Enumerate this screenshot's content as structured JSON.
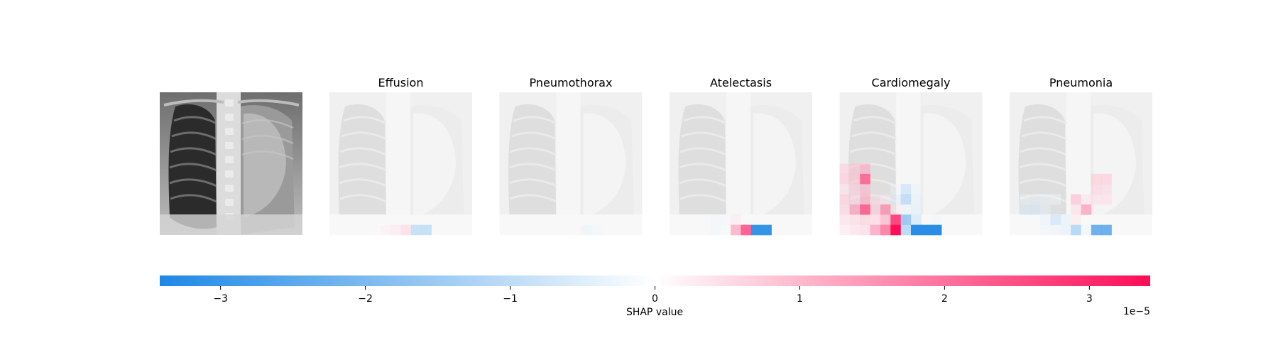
{
  "chart_data": {
    "type": "heatmap",
    "input_image": {
      "description_icon": "chest-xray-image"
    },
    "panels": [
      {
        "title": "Effusion",
        "cells": [
          {
            "row": 13,
            "col": 5,
            "value": 3e-06
          },
          {
            "row": 13,
            "col": 6,
            "value": 4.5e-06
          },
          {
            "row": 13,
            "col": 7,
            "value": 7e-06
          },
          {
            "row": 13,
            "col": 8,
            "value": -1.3e-05
          },
          {
            "row": 13,
            "col": 9,
            "value": -1.3e-05
          }
        ]
      },
      {
        "title": "Pneumothorax",
        "cells": [
          {
            "row": 13,
            "col": 7,
            "value": 2e-06
          },
          {
            "row": 13,
            "col": 8,
            "value": -4e-06
          },
          {
            "row": 13,
            "col": 9,
            "value": -3e-06
          }
        ]
      },
      {
        "title": "Atelectasis",
        "cells": [
          {
            "row": 12,
            "col": 4,
            "value": -3e-06
          },
          {
            "row": 12,
            "col": 5,
            "value": -2.5e-06
          },
          {
            "row": 12,
            "col": 6,
            "value": 4e-06
          },
          {
            "row": 13,
            "col": 4,
            "value": -3e-06
          },
          {
            "row": 13,
            "col": 5,
            "value": -2e-06
          },
          {
            "row": 13,
            "col": 6,
            "value": 1.5e-05
          },
          {
            "row": 13,
            "col": 7,
            "value": 2.6e-05
          },
          {
            "row": 13,
            "col": 8,
            "value": -3.2e-05
          },
          {
            "row": 13,
            "col": 9,
            "value": -3.2e-05
          }
        ]
      },
      {
        "title": "Cardiomegaly",
        "cells": [
          {
            "row": 7,
            "col": 0,
            "value": 8e-06
          },
          {
            "row": 7,
            "col": 1,
            "value": 1e-05
          },
          {
            "row": 7,
            "col": 2,
            "value": 1.3e-05
          },
          {
            "row": 8,
            "col": 0,
            "value": 9e-06
          },
          {
            "row": 8,
            "col": 1,
            "value": 1e-05
          },
          {
            "row": 8,
            "col": 2,
            "value": 2.4e-05
          },
          {
            "row": 9,
            "col": 0,
            "value": 6e-06
          },
          {
            "row": 9,
            "col": 1,
            "value": 8e-06
          },
          {
            "row": 9,
            "col": 2,
            "value": 1.1e-05
          },
          {
            "row": 9,
            "col": 5,
            "value": -3e-06
          },
          {
            "row": 9,
            "col": 6,
            "value": -1e-05
          },
          {
            "row": 9,
            "col": 7,
            "value": -4e-06
          },
          {
            "row": 10,
            "col": 0,
            "value": 9e-06
          },
          {
            "row": 10,
            "col": 1,
            "value": 7e-06
          },
          {
            "row": 10,
            "col": 2,
            "value": 1.3e-05
          },
          {
            "row": 10,
            "col": 3,
            "value": 6e-06
          },
          {
            "row": 10,
            "col": 4,
            "value": 3e-06
          },
          {
            "row": 10,
            "col": 5,
            "value": -6e-06
          },
          {
            "row": 10,
            "col": 6,
            "value": -1.4e-05
          },
          {
            "row": 10,
            "col": 7,
            "value": -5e-06
          },
          {
            "row": 11,
            "col": 0,
            "value": 8e-06
          },
          {
            "row": 11,
            "col": 1,
            "value": 1.5e-05
          },
          {
            "row": 11,
            "col": 2,
            "value": 2.5e-05
          },
          {
            "row": 11,
            "col": 3,
            "value": 8e-06
          },
          {
            "row": 11,
            "col": 4,
            "value": 1.8e-05
          },
          {
            "row": 11,
            "col": 5,
            "value": 4e-06
          },
          {
            "row": 11,
            "col": 6,
            "value": -4e-06
          },
          {
            "row": 11,
            "col": 7,
            "value": -6e-06
          },
          {
            "row": 12,
            "col": 0,
            "value": 6e-06
          },
          {
            "row": 12,
            "col": 1,
            "value": 7e-06
          },
          {
            "row": 12,
            "col": 2,
            "value": 9e-06
          },
          {
            "row": 12,
            "col": 3,
            "value": 8e-06
          },
          {
            "row": 12,
            "col": 4,
            "value": 1.3e-05
          },
          {
            "row": 12,
            "col": 5,
            "value": 2.9e-05
          },
          {
            "row": 12,
            "col": 6,
            "value": -2e-05
          },
          {
            "row": 12,
            "col": 7,
            "value": -9e-06
          },
          {
            "row": 12,
            "col": 9,
            "value": -3e-06
          },
          {
            "row": 12,
            "col": 10,
            "value": -2e-06
          },
          {
            "row": 13,
            "col": 0,
            "value": 4e-06
          },
          {
            "row": 13,
            "col": 1,
            "value": 6e-06
          },
          {
            "row": 13,
            "col": 2,
            "value": 7e-06
          },
          {
            "row": 13,
            "col": 3,
            "value": 1.6e-05
          },
          {
            "row": 13,
            "col": 4,
            "value": 2.2e-05
          },
          {
            "row": 13,
            "col": 5,
            "value": 3.4e-05
          },
          {
            "row": 13,
            "col": 6,
            "value": -1.5e-05
          },
          {
            "row": 13,
            "col": 7,
            "value": -3.3e-05
          },
          {
            "row": 13,
            "col": 8,
            "value": -3.3e-05
          },
          {
            "row": 13,
            "col": 9,
            "value": -3.3e-05
          }
        ]
      },
      {
        "title": "Pneumonia",
        "cells": [
          {
            "row": 8,
            "col": 8,
            "value": 9e-06
          },
          {
            "row": 8,
            "col": 9,
            "value": 9e-06
          },
          {
            "row": 9,
            "col": 8,
            "value": 8e-06
          },
          {
            "row": 9,
            "col": 9,
            "value": 7e-06
          },
          {
            "row": 10,
            "col": 1,
            "value": -3e-06
          },
          {
            "row": 10,
            "col": 2,
            "value": -4e-06
          },
          {
            "row": 10,
            "col": 3,
            "value": -3e-06
          },
          {
            "row": 10,
            "col": 4,
            "value": -2e-06
          },
          {
            "row": 10,
            "col": 6,
            "value": 1.1e-05
          },
          {
            "row": 10,
            "col": 7,
            "value": 5e-06
          },
          {
            "row": 10,
            "col": 8,
            "value": 6e-06
          },
          {
            "row": 10,
            "col": 9,
            "value": 6e-06
          },
          {
            "row": 11,
            "col": 1,
            "value": -6e-06
          },
          {
            "row": 11,
            "col": 2,
            "value": -7e-06
          },
          {
            "row": 11,
            "col": 3,
            "value": -4e-06
          },
          {
            "row": 11,
            "col": 6,
            "value": 6e-06
          },
          {
            "row": 11,
            "col": 7,
            "value": 1.6e-05
          },
          {
            "row": 12,
            "col": 3,
            "value": -4e-06
          },
          {
            "row": 12,
            "col": 4,
            "value": -1e-05
          },
          {
            "row": 12,
            "col": 5,
            "value": -5e-06
          },
          {
            "row": 12,
            "col": 6,
            "value": 4e-06
          },
          {
            "row": 13,
            "col": 2,
            "value": -2e-06
          },
          {
            "row": 13,
            "col": 3,
            "value": -3e-06
          },
          {
            "row": 13,
            "col": 4,
            "value": -4e-06
          },
          {
            "row": 13,
            "col": 5,
            "value": -5e-06
          },
          {
            "row": 13,
            "col": 6,
            "value": -1.6e-05
          },
          {
            "row": 13,
            "col": 7,
            "value": -3e-06
          },
          {
            "row": 13,
            "col": 8,
            "value": -2.6e-05
          },
          {
            "row": 13,
            "col": 9,
            "value": -2.6e-05
          }
        ]
      }
    ],
    "grid": {
      "rows": 14,
      "cols": 14
    },
    "colorbar": {
      "label": "SHAP value",
      "range": [
        -3.42e-05,
        3.42e-05
      ],
      "ticks": [
        -3e-05,
        -2e-05,
        -1e-05,
        0,
        1e-05,
        2e-05,
        3e-05
      ],
      "tick_labels": [
        "−3",
        "−2",
        "−1",
        "0",
        "1",
        "2",
        "3"
      ],
      "scale_label": "1e−5",
      "negative_color": "#1e88e5",
      "zero_color": "#ffffff",
      "positive_color": "#ff0d57"
    }
  }
}
